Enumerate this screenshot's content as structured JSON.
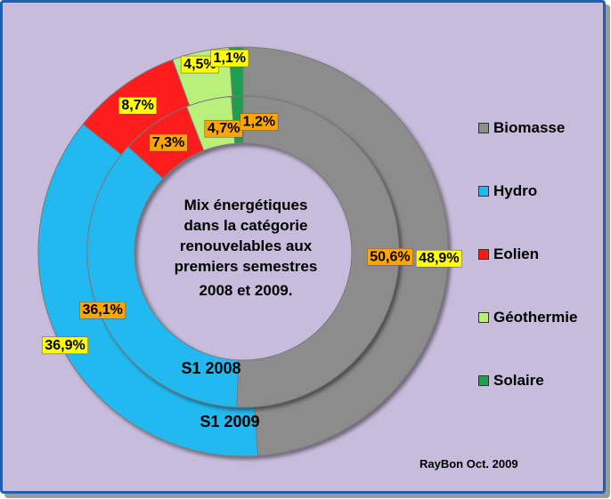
{
  "chart_data": {
    "type": "donut",
    "title_lines": [
      "Mix énergétiques",
      "dans la catégorie",
      "renouvelables aux",
      "premiers semestres",
      "2008 et 2009."
    ],
    "categories": [
      "Biomasse",
      "Hydro",
      "Eolien",
      "Géothermie",
      "Solaire"
    ],
    "colors": [
      "#8c8c8c",
      "#22b8f0",
      "#ff1a1a",
      "#b8f07a",
      "#1fa050"
    ],
    "series": [
      {
        "name": "S1 2008",
        "ring": "inner",
        "values": [
          50.6,
          36.1,
          7.3,
          4.7,
          1.2
        ],
        "labels": [
          "50,6%",
          "36,1%",
          "7,3%",
          "4,7%",
          "1,2%"
        ],
        "label_bg": "#ffa500"
      },
      {
        "name": "S1 2009",
        "ring": "outer",
        "values": [
          48.9,
          36.9,
          8.7,
          4.5,
          1.1
        ],
        "labels": [
          "48,9%",
          "36,9%",
          "8,7%",
          "4,5%",
          "1,1%"
        ],
        "label_bg": "#ffff00"
      }
    ],
    "legend_position": "right"
  },
  "credit": "RayBon Oct. 2009"
}
